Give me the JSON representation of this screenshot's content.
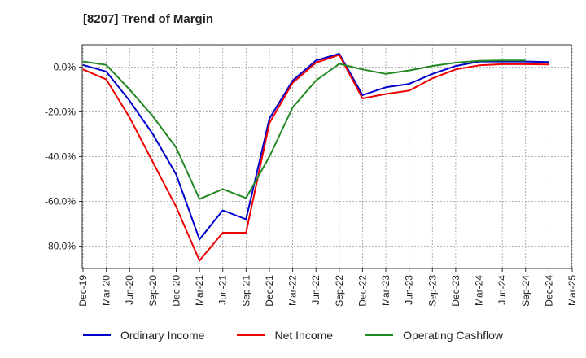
{
  "chart_data": {
    "type": "line",
    "title": "[8207]  Trend of Margin",
    "xlabel": "",
    "ylabel": "",
    "ylim": [
      -90,
      10
    ],
    "yticks": [
      0,
      -20,
      -40,
      -60,
      -80
    ],
    "ytick_labels": [
      "0.0%",
      "-20.0%",
      "-40.0%",
      "-60.0%",
      "-80.0%"
    ],
    "x_tick_labels": [
      "Dec-19",
      "Mar-20",
      "Jun-20",
      "Sep-20",
      "Dec-20",
      "Mar-21",
      "Jun-21",
      "Sep-21",
      "Dec-21",
      "Mar-22",
      "Jun-22",
      "Sep-22",
      "Dec-22",
      "Mar-23",
      "Jun-23",
      "Sep-23",
      "Dec-23",
      "Mar-24",
      "Jun-24",
      "Sep-24",
      "Dec-24",
      "Mar-25"
    ],
    "grid": true,
    "legend_position": "bottom",
    "series": [
      {
        "name": "Ordinary Income",
        "color": "#0000cc",
        "values": [
          1.0,
          -2.0,
          -15.0,
          -30.0,
          -48.0,
          -77.0,
          -64.0,
          -68.0,
          -23.0,
          -6.0,
          3.0,
          6.0,
          -12.5,
          -9.0,
          -7.5,
          -3.0,
          0.5,
          2.5,
          2.5,
          2.5,
          2.3,
          null
        ]
      },
      {
        "name": "Net Income",
        "color": "#ee0000",
        "values": [
          -1.0,
          -5.5,
          -22.5,
          -42.5,
          -62.5,
          -86.5,
          -74.0,
          -74.0,
          -25.0,
          -7.0,
          2.0,
          5.5,
          -14.0,
          -12.0,
          -10.5,
          -5.0,
          -1.0,
          0.8,
          1.3,
          1.3,
          1.2,
          null
        ]
      },
      {
        "name": "Operating Cashflow",
        "color": "#228822",
        "values": [
          2.5,
          1.0,
          -10.0,
          -22.0,
          -36.0,
          -59.0,
          -54.5,
          -58.5,
          -40.0,
          -18.0,
          -6.0,
          1.5,
          -1.0,
          -3.0,
          -1.5,
          0.5,
          2.0,
          2.8,
          3.0,
          3.0,
          null,
          null
        ]
      }
    ]
  }
}
